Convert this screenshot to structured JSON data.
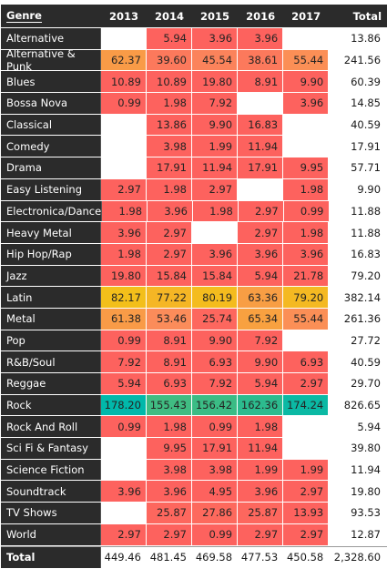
{
  "matrix": {
    "headers": {
      "genre": "Genre",
      "years": [
        "2013",
        "2014",
        "2015",
        "2016",
        "2017"
      ],
      "total": "Total"
    },
    "colors": {
      "low": "#fd625e",
      "mid_low": "#fb8c5a",
      "mid": "#f2c80f",
      "high": "#01b8aa"
    },
    "rows": [
      {
        "genre": "Alternative",
        "values": [
          "",
          "5.94",
          "3.96",
          "3.96",
          ""
        ],
        "fills": [
          null,
          0.02,
          0.01,
          0.01,
          null
        ],
        "total": "13.86"
      },
      {
        "genre": "Alternative & Punk",
        "values": [
          "62.37",
          "39.60",
          "45.54",
          "38.61",
          "55.44"
        ],
        "fills": [
          0.35,
          0.22,
          0.26,
          0.22,
          0.31
        ],
        "total": "241.56"
      },
      {
        "genre": "Blues",
        "values": [
          "10.89",
          "10.89",
          "19.80",
          "8.91",
          "9.90"
        ],
        "fills": [
          0.05,
          0.05,
          0.1,
          0.04,
          0.05
        ],
        "total": "60.39"
      },
      {
        "genre": "Bossa Nova",
        "values": [
          "0.99",
          "1.98",
          "7.92",
          "",
          "3.96"
        ],
        "fills": [
          0,
          0.01,
          0.04,
          null,
          0.01
        ],
        "total": "14.85"
      },
      {
        "genre": "Classical",
        "values": [
          "",
          "13.86",
          "9.90",
          "16.83",
          ""
        ],
        "fills": [
          null,
          0.07,
          0.05,
          0.09,
          null
        ],
        "total": "40.59"
      },
      {
        "genre": "Comedy",
        "values": [
          "",
          "3.98",
          "1.99",
          "11.94",
          ""
        ],
        "fills": [
          null,
          0.02,
          0.01,
          0.06,
          null
        ],
        "total": "17.91"
      },
      {
        "genre": "Drama",
        "values": [
          "",
          "17.91",
          "11.94",
          "17.91",
          "9.95"
        ],
        "fills": [
          null,
          0.09,
          0.06,
          0.09,
          0.05
        ],
        "total": "57.71"
      },
      {
        "genre": "Easy Listening",
        "values": [
          "2.97",
          "1.98",
          "2.97",
          "",
          "1.98"
        ],
        "fills": [
          0.01,
          0.01,
          0.01,
          null,
          0.01
        ],
        "total": "9.90"
      },
      {
        "genre": "Electronica/Dance",
        "values": [
          "1.98",
          "3.96",
          "1.98",
          "2.97",
          "0.99"
        ],
        "fills": [
          0.01,
          0.01,
          0.01,
          0.01,
          0
        ],
        "total": "11.88"
      },
      {
        "genre": "Heavy Metal",
        "values": [
          "3.96",
          "2.97",
          "",
          "2.97",
          "1.98"
        ],
        "fills": [
          0.01,
          0.01,
          null,
          0.01,
          0.01
        ],
        "total": "11.88"
      },
      {
        "genre": "Hip Hop/Rap",
        "values": [
          "1.98",
          "2.97",
          "3.96",
          "3.96",
          "3.96"
        ],
        "fills": [
          0.01,
          0.01,
          0.01,
          0.01,
          0.01
        ],
        "total": "16.83"
      },
      {
        "genre": "Jazz",
        "values": [
          "19.80",
          "15.84",
          "15.84",
          "5.94",
          "21.78"
        ],
        "fills": [
          0.1,
          0.08,
          0.08,
          0.02,
          0.11
        ],
        "total": "79.20"
      },
      {
        "genre": "Latin",
        "values": [
          "82.17",
          "77.22",
          "80.19",
          "63.36",
          "79.20"
        ],
        "fills": [
          0.47,
          0.44,
          0.46,
          0.36,
          0.45
        ],
        "total": "382.14"
      },
      {
        "genre": "Metal",
        "values": [
          "61.38",
          "53.46",
          "25.74",
          "65.34",
          "55.44"
        ],
        "fills": [
          0.35,
          0.3,
          0.14,
          0.37,
          0.31
        ],
        "total": "261.36"
      },
      {
        "genre": "Pop",
        "values": [
          "0.99",
          "8.91",
          "9.90",
          "7.92",
          ""
        ],
        "fills": [
          0,
          0.04,
          0.05,
          0.04,
          null
        ],
        "total": "27.72"
      },
      {
        "genre": "R&B/Soul",
        "values": [
          "7.92",
          "8.91",
          "6.93",
          "9.90",
          "6.93"
        ],
        "fills": [
          0.04,
          0.04,
          0.03,
          0.05,
          0.03
        ],
        "total": "40.59"
      },
      {
        "genre": "Reggae",
        "values": [
          "5.94",
          "6.93",
          "7.92",
          "5.94",
          "2.97"
        ],
        "fills": [
          0.02,
          0.03,
          0.04,
          0.02,
          0.01
        ],
        "total": "29.70"
      },
      {
        "genre": "Rock",
        "values": [
          "178.20",
          "155.43",
          "156.42",
          "162.36",
          "174.24"
        ],
        "fills": [
          1,
          0.87,
          0.88,
          0.91,
          0.98
        ],
        "total": "826.65"
      },
      {
        "genre": "Rock And Roll",
        "values": [
          "0.99",
          "1.98",
          "0.99",
          "1.98",
          ""
        ],
        "fills": [
          0,
          0.01,
          0,
          0.01,
          null
        ],
        "total": "5.94"
      },
      {
        "genre": "Sci Fi & Fantasy",
        "values": [
          "",
          "9.95",
          "17.91",
          "11.94",
          ""
        ],
        "fills": [
          null,
          0.05,
          0.09,
          0.06,
          null
        ],
        "total": "39.80"
      },
      {
        "genre": "Science Fiction",
        "values": [
          "",
          "3.98",
          "3.98",
          "1.99",
          "1.99"
        ],
        "fills": [
          null,
          0.02,
          0.02,
          0.01,
          0.01
        ],
        "total": "11.94"
      },
      {
        "genre": "Soundtrack",
        "values": [
          "3.96",
          "3.96",
          "4.95",
          "3.96",
          "2.97"
        ],
        "fills": [
          0.01,
          0.01,
          0.02,
          0.01,
          0.01
        ],
        "total": "19.80"
      },
      {
        "genre": "TV Shows",
        "values": [
          "",
          "25.87",
          "27.86",
          "25.87",
          "13.93"
        ],
        "fills": [
          null,
          0.14,
          0.15,
          0.14,
          0.07
        ],
        "total": "93.53"
      },
      {
        "genre": "World",
        "values": [
          "2.97",
          "2.97",
          "0.99",
          "2.97",
          "2.97"
        ],
        "fills": [
          0.01,
          0.01,
          0,
          0.01,
          0.01
        ],
        "total": "12.87"
      }
    ],
    "footer": {
      "label": "Total",
      "values": [
        "449.46",
        "481.45",
        "469.58",
        "477.53",
        "450.58"
      ],
      "total": "2,328.60"
    }
  }
}
